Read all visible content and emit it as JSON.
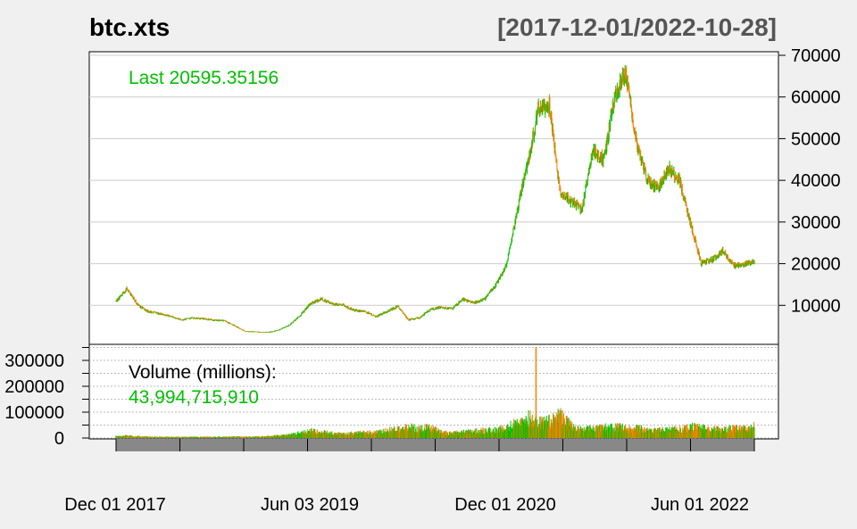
{
  "chart_data": {
    "type": "bar",
    "title": "btc.xts",
    "date_range": "[2017-12-01/2022-10-28]",
    "x": [
      "2017-12-01",
      "2018-01-01",
      "2018-02-01",
      "2018-03-01",
      "2018-04-01",
      "2018-05-01",
      "2018-06-01",
      "2018-07-01",
      "2018-08-01",
      "2018-09-01",
      "2018-10-01",
      "2018-11-01",
      "2018-12-01",
      "2019-01-01",
      "2019-02-01",
      "2019-03-01",
      "2019-04-01",
      "2019-05-01",
      "2019-06-01",
      "2019-07-01",
      "2019-08-01",
      "2019-09-01",
      "2019-10-01",
      "2019-11-01",
      "2019-12-01",
      "2020-01-01",
      "2020-02-01",
      "2020-03-01",
      "2020-04-01",
      "2020-05-01",
      "2020-06-01",
      "2020-07-01",
      "2020-08-01",
      "2020-09-01",
      "2020-10-01",
      "2020-11-01",
      "2020-12-01",
      "2021-01-01",
      "2021-02-01",
      "2021-03-01",
      "2021-04-01",
      "2021-05-01",
      "2021-06-01",
      "2021-07-01",
      "2021-08-01",
      "2021-09-01",
      "2021-10-01",
      "2021-11-01",
      "2021-12-01",
      "2022-01-01",
      "2022-02-01",
      "2022-03-01",
      "2022-04-01",
      "2022-05-01",
      "2022-06-01",
      "2022-07-01",
      "2022-08-01",
      "2022-09-01",
      "2022-10-01",
      "2022-10-28"
    ],
    "price": [
      11000,
      14000,
      10000,
      8500,
      8000,
      7500,
      6500,
      7000,
      6800,
      6500,
      6300,
      5000,
      3700,
      3600,
      3500,
      4000,
      5200,
      7500,
      10500,
      11500,
      10300,
      10000,
      8800,
      8500,
      7300,
      8500,
      9800,
      6500,
      7000,
      9000,
      9500,
      9200,
      11500,
      10600,
      11500,
      15000,
      19500,
      33000,
      45000,
      57000,
      58000,
      37000,
      35000,
      33000,
      47000,
      45000,
      60000,
      66000,
      49000,
      40000,
      38000,
      43000,
      40000,
      30000,
      20000,
      21000,
      23000,
      19500,
      19800,
      20595.35156
    ],
    "volume_millions": [
      6000,
      8000,
      6000,
      4500,
      4000,
      4200,
      3500,
      3800,
      4000,
      4200,
      3800,
      5000,
      4000,
      5000,
      6500,
      9000,
      12000,
      20000,
      25000,
      22000,
      17000,
      15000,
      18000,
      22000,
      20000,
      28000,
      32000,
      40000,
      35000,
      38000,
      22000,
      18000,
      22000,
      25000,
      28000,
      30000,
      35000,
      60000,
      75000,
      55000,
      60000,
      80000,
      45000,
      30000,
      35000,
      38000,
      40000,
      38000,
      35000,
      30000,
      28000,
      30000,
      32000,
      40000,
      38000,
      32000,
      30000,
      35000,
      33000,
      43994.71591
    ],
    "price_ylim": [
      0,
      70000
    ],
    "price_ticks": [
      "70000",
      "60000",
      "50000",
      "40000",
      "30000",
      "20000",
      "10000"
    ],
    "volume_ylim": [
      0,
      380000
    ],
    "volume_ticks": [
      "300000",
      "200000",
      "100000",
      "0"
    ],
    "x_tick_labels": [
      "Dec 01 2017",
      "Jun 03 2019",
      "Dec 01 2020",
      "Jun 01 2022"
    ],
    "last_label": "Last 20595.35156",
    "volume_label": "Volume (millions):",
    "volume_value": "43,994,715,910",
    "up_color": "#00c000",
    "down_color": "#ff7f00",
    "grid": true
  }
}
